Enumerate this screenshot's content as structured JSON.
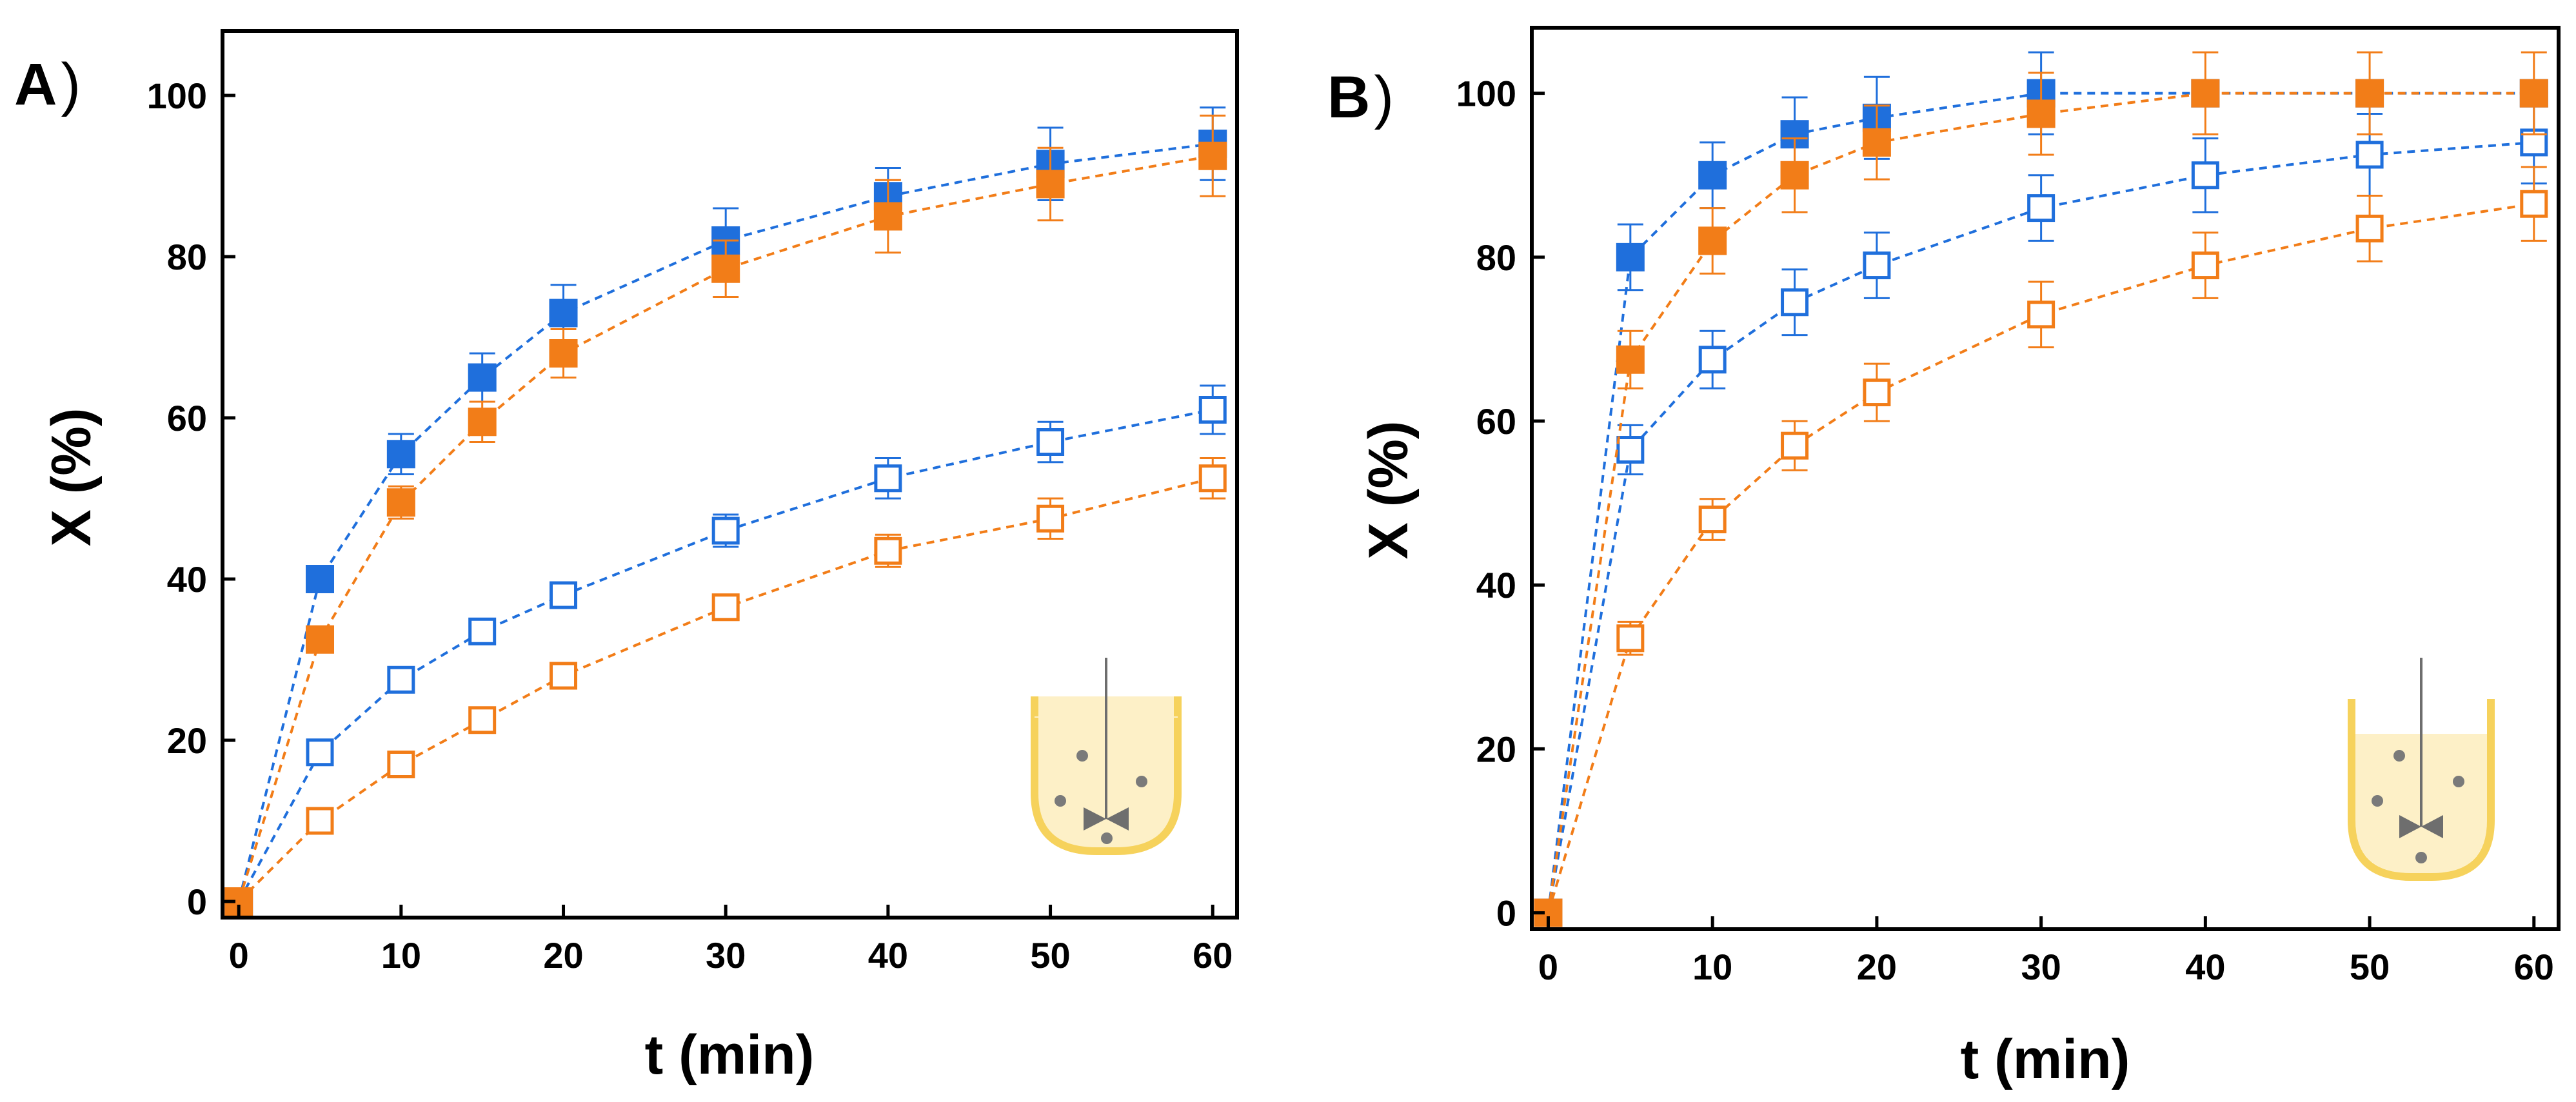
{
  "colors": {
    "blue": "#1f6fdc",
    "orange": "#f27d18",
    "beaker_rim": "#f6d25c",
    "beaker_fill": "#fdf0c7",
    "impeller": "#6e6e6e"
  },
  "icons": [
    "beaker-stirred-tank-icon"
  ],
  "chart_data": [
    {
      "type": "scatter",
      "panel_label": "A",
      "panel_paren": ")",
      "xlabel": "t (min)",
      "ylabel": "X (%)",
      "xlim": [
        -1,
        61.5
      ],
      "ylim": [
        -2,
        108
      ],
      "xticks": [
        0,
        10,
        20,
        30,
        40,
        50,
        60
      ],
      "yticks": [
        0,
        20,
        40,
        60,
        80,
        100
      ],
      "xtick_labels": [
        "0",
        "10",
        "20",
        "30",
        "40",
        "50",
        "60"
      ],
      "ytick_labels": [
        "0",
        "20",
        "40",
        "60",
        "80",
        "100"
      ],
      "x": [
        0,
        5,
        10,
        15,
        20,
        30,
        40,
        50,
        60
      ],
      "series": [
        {
          "name": "blue filled",
          "color": "blue",
          "filled": true,
          "values": [
            0,
            40,
            55.5,
            65,
            73,
            82,
            87.5,
            91.5,
            94
          ],
          "errors": [
            0,
            1.5,
            2.5,
            3,
            3.5,
            4,
            3.5,
            4.5,
            4.5
          ]
        },
        {
          "name": "orange filled",
          "color": "orange",
          "filled": true,
          "values": [
            0,
            32.5,
            49.5,
            59.5,
            68,
            78.5,
            85,
            89,
            92.5
          ],
          "errors": [
            0,
            1,
            2,
            2.5,
            3,
            3.5,
            4.5,
            4.5,
            5
          ]
        },
        {
          "name": "blue open",
          "color": "blue",
          "filled": false,
          "values": [
            0,
            18.5,
            27.5,
            33.5,
            38,
            46,
            52.5,
            57,
            61
          ],
          "errors": [
            0,
            1,
            1,
            1.5,
            1.5,
            2,
            2.5,
            2.5,
            3
          ]
        },
        {
          "name": "orange open",
          "color": "orange",
          "filled": false,
          "values": [
            0,
            10,
            17,
            22.5,
            28,
            36.5,
            43.5,
            47.5,
            52.5
          ],
          "errors": [
            0,
            1,
            1,
            1,
            1,
            1.5,
            2,
            2.5,
            2.5
          ]
        }
      ]
    },
    {
      "type": "scatter",
      "panel_label": "B",
      "panel_paren": ")",
      "xlabel": "t (min)",
      "ylabel": "X (%)",
      "xlim": [
        -1,
        61.5
      ],
      "ylim": [
        -2,
        108
      ],
      "xticks": [
        0,
        10,
        20,
        30,
        40,
        50,
        60
      ],
      "yticks": [
        0,
        20,
        40,
        60,
        80,
        100
      ],
      "xtick_labels": [
        "0",
        "10",
        "20",
        "30",
        "40",
        "50",
        "60"
      ],
      "ytick_labels": [
        "0",
        "20",
        "40",
        "60",
        "80",
        "100"
      ],
      "x": [
        0,
        5,
        10,
        15,
        20,
        30,
        40,
        50,
        60
      ],
      "series": [
        {
          "name": "blue filled",
          "color": "blue",
          "filled": true,
          "values": [
            0,
            80,
            90,
            95,
            97,
            100,
            100,
            100,
            100
          ],
          "errors": [
            0,
            4,
            4,
            4.5,
            5,
            5,
            0,
            0,
            0
          ]
        },
        {
          "name": "orange filled",
          "color": "orange",
          "filled": true,
          "values": [
            0,
            67.5,
            82,
            90,
            94,
            97.5,
            100,
            100,
            100
          ],
          "errors": [
            0,
            3.5,
            4,
            4.5,
            4.5,
            5,
            5,
            5,
            5
          ]
        },
        {
          "name": "blue open",
          "color": "blue",
          "filled": false,
          "values": [
            0,
            56.5,
            67.5,
            74.5,
            79,
            86,
            90,
            92.5,
            94
          ],
          "errors": [
            0,
            3,
            3.5,
            4,
            4,
            4,
            4.5,
            5,
            5
          ]
        },
        {
          "name": "orange open",
          "color": "orange",
          "filled": false,
          "values": [
            0,
            33.5,
            48,
            57,
            63.5,
            73,
            79,
            83.5,
            86.5
          ],
          "errors": [
            0,
            2,
            2.5,
            3,
            3.5,
            4,
            4,
            4,
            4.5
          ]
        }
      ]
    }
  ]
}
